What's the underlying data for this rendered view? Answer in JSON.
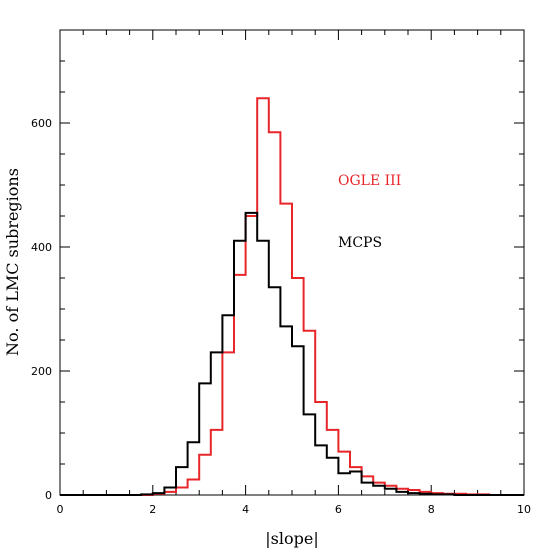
{
  "chart_data": {
    "type": "histogram",
    "xlabel": "|slope|",
    "ylabel": "No. of LMC subregions",
    "xlim": [
      0,
      10
    ],
    "ylim": [
      0,
      750
    ],
    "x_ticks": [
      0,
      2,
      4,
      6,
      8,
      10
    ],
    "y_ticks": [
      0,
      200,
      400,
      600
    ],
    "bin_width": 0.25,
    "grid": false,
    "legend_placement": "right-middle",
    "series": [
      {
        "name": "OGLE III",
        "color": "#e8262a",
        "bin_start": 0,
        "values": [
          0,
          0,
          0,
          0,
          0,
          0,
          0,
          0,
          2,
          5,
          12,
          25,
          65,
          105,
          230,
          355,
          450,
          640,
          585,
          470,
          350,
          265,
          150,
          105,
          70,
          45,
          30,
          20,
          15,
          10,
          8,
          5,
          3,
          2,
          2,
          1,
          1,
          0,
          0,
          0
        ]
      },
      {
        "name": "MCPS",
        "color": "#000000",
        "bin_start": 0,
        "values": [
          0,
          0,
          0,
          0,
          0,
          0,
          0,
          1,
          3,
          12,
          45,
          85,
          180,
          230,
          290,
          410,
          455,
          410,
          335,
          272,
          240,
          130,
          80,
          60,
          35,
          38,
          20,
          15,
          10,
          5,
          3,
          2,
          1,
          1,
          0,
          0,
          0,
          0,
          0,
          0
        ]
      }
    ]
  }
}
